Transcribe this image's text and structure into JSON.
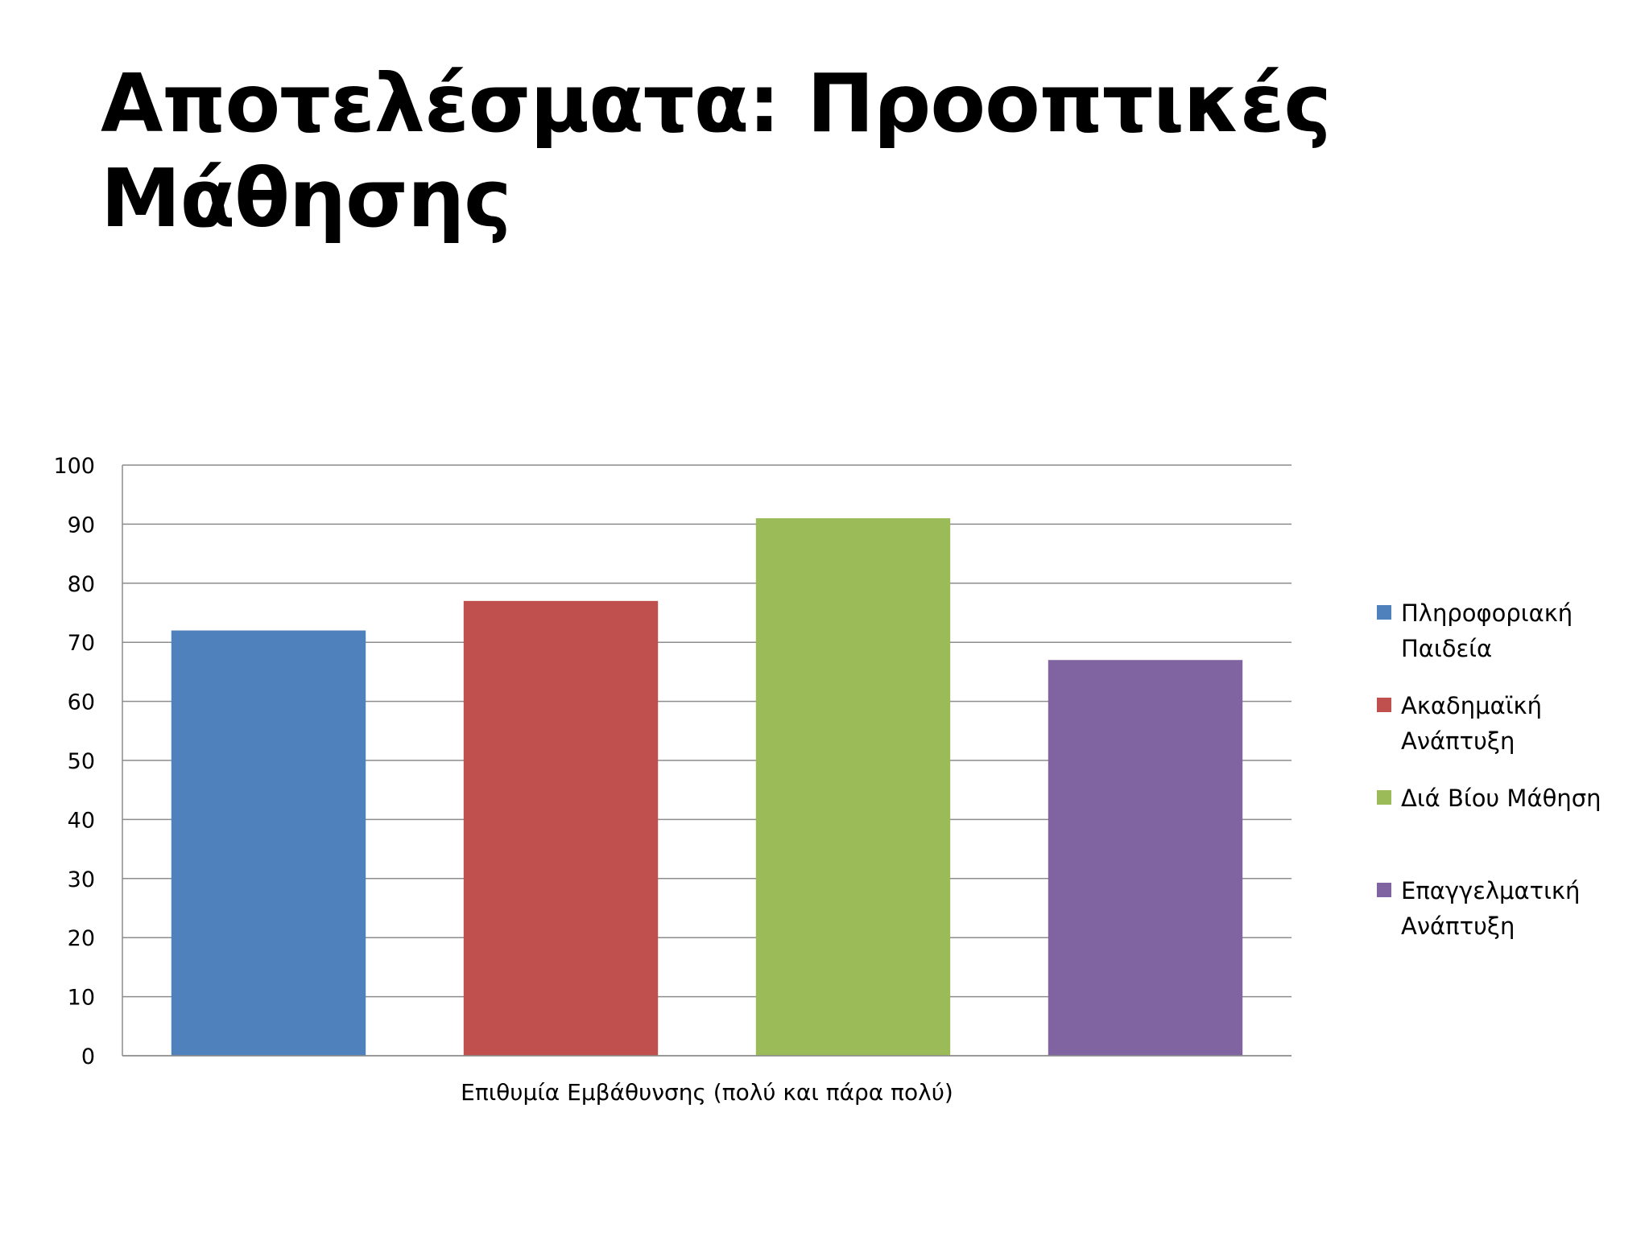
{
  "slide": {
    "title": "Αποτελέσματα: Προοπτικές Μάθησης"
  },
  "chart_data": {
    "type": "bar",
    "title": "",
    "xlabel": "Επιθυμία Εμβάθυνσης (πολύ και πάρα πολύ)",
    "ylabel": "",
    "ylim": [
      0,
      100
    ],
    "yticks": [
      "0",
      "10",
      "20",
      "30",
      "40",
      "50",
      "60",
      "70",
      "80",
      "90",
      "100"
    ],
    "grid": true,
    "legend_position": "right",
    "categories": [
      "Επιθυμία Εμβάθυνσης (πολύ και πάρα πολύ)"
    ],
    "series": [
      {
        "name": "Πληροφοριακή Παιδεία",
        "values": [
          72
        ],
        "color": "#4F81BD"
      },
      {
        "name": "Ακαδημαϊκή Ανάπτυξη",
        "values": [
          77
        ],
        "color": "#C0504D"
      },
      {
        "name": "Διά Βίου Μάθηση",
        "values": [
          91
        ],
        "color": "#9BBB59"
      },
      {
        "name": "Επαγγελματική Ανάπτυξη",
        "values": [
          67
        ],
        "color": "#8064A2"
      }
    ]
  }
}
